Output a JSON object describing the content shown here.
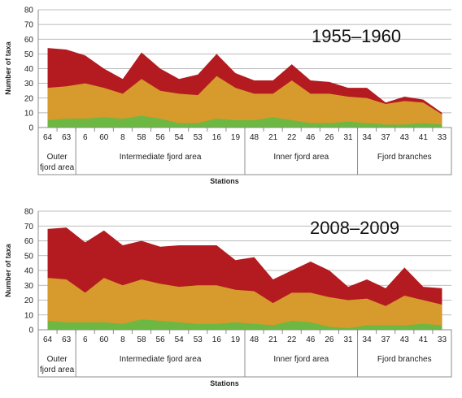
{
  "colors": {
    "green": "#6cb842",
    "orange": "#d69a2d",
    "red": "#b31b20",
    "grid": "#a6a6a6",
    "frame": "#8c8c8c"
  },
  "chart_data": [
    {
      "type": "area",
      "title": "1955–1960",
      "xlabel": "Stations",
      "ylabel": "Number of taxa",
      "ylim": [
        0,
        80
      ],
      "yticks": [
        0,
        10,
        20,
        30,
        40,
        50,
        60,
        70,
        80
      ],
      "categories": [
        "64",
        "63",
        "6",
        "60",
        "8",
        "58",
        "56",
        "54",
        "53",
        "16",
        "19",
        "48",
        "21",
        "22",
        "46",
        "26",
        "31",
        "34",
        "37",
        "43",
        "41",
        "33"
      ],
      "groups": [
        {
          "label": "Outer fjord area",
          "lines": [
            "Outer",
            "fjord area"
          ]
        },
        {
          "label": "Intermediate fjord area",
          "lines": [
            "Intermediate fjord area"
          ]
        },
        {
          "label": "Inner fjord area",
          "lines": [
            "Inner fjord area"
          ]
        },
        {
          "label": "Fjord branches",
          "lines": [
            "Fjord branches"
          ]
        }
      ],
      "series": [
        {
          "color": "green",
          "values": [
            5,
            6,
            6,
            7,
            6,
            8,
            6,
            3,
            3,
            6,
            5,
            5,
            7,
            5,
            3,
            3,
            4,
            3,
            2,
            2,
            3,
            2
          ]
        },
        {
          "color": "orange",
          "values": [
            27,
            28,
            30,
            27,
            23,
            33,
            25,
            23,
            22,
            35,
            27,
            23,
            23,
            32,
            23,
            23,
            21,
            20,
            16,
            18,
            17,
            9
          ]
        },
        {
          "color": "red",
          "values": [
            54,
            53,
            49,
            40,
            33,
            51,
            40,
            33,
            36,
            50,
            37,
            32,
            32,
            43,
            32,
            31,
            27,
            27,
            17,
            21,
            19,
            10
          ]
        }
      ]
    },
    {
      "type": "area",
      "title": "2008–2009",
      "xlabel": "Stations",
      "ylabel": "Number of taxa",
      "ylim": [
        0,
        80
      ],
      "yticks": [
        0,
        10,
        20,
        30,
        40,
        50,
        60,
        70,
        80
      ],
      "categories": [
        "64",
        "63",
        "6",
        "60",
        "8",
        "58",
        "56",
        "54",
        "53",
        "16",
        "19",
        "48",
        "21",
        "22",
        "46",
        "26",
        "31",
        "34",
        "37",
        "43",
        "41",
        "33"
      ],
      "groups": [
        {
          "label": "Outer fjord area",
          "lines": [
            "Outer",
            "fjord area"
          ]
        },
        {
          "label": "Intermediate fjord area",
          "lines": [
            "Intermediate fjord area"
          ]
        },
        {
          "label": "Inner fjord area",
          "lines": [
            "Inner fjord area"
          ]
        },
        {
          "label": "Fjord branches",
          "lines": [
            "Fjord branches"
          ]
        }
      ],
      "series": [
        {
          "color": "green",
          "values": [
            6,
            5,
            5,
            5,
            4,
            7,
            6,
            5,
            4,
            4,
            5,
            4,
            3,
            6,
            5,
            2,
            1,
            3,
            3,
            3,
            4,
            3
          ]
        },
        {
          "color": "orange",
          "values": [
            35,
            34,
            25,
            35,
            30,
            34,
            31,
            29,
            30,
            30,
            27,
            26,
            18,
            25,
            25,
            22,
            20,
            21,
            16,
            23,
            20,
            17
          ]
        },
        {
          "color": "red",
          "values": [
            68,
            69,
            59,
            67,
            57,
            60,
            56,
            57,
            57,
            57,
            47,
            49,
            34,
            40,
            46,
            40,
            29,
            34,
            28,
            42,
            29,
            28
          ]
        }
      ]
    }
  ]
}
